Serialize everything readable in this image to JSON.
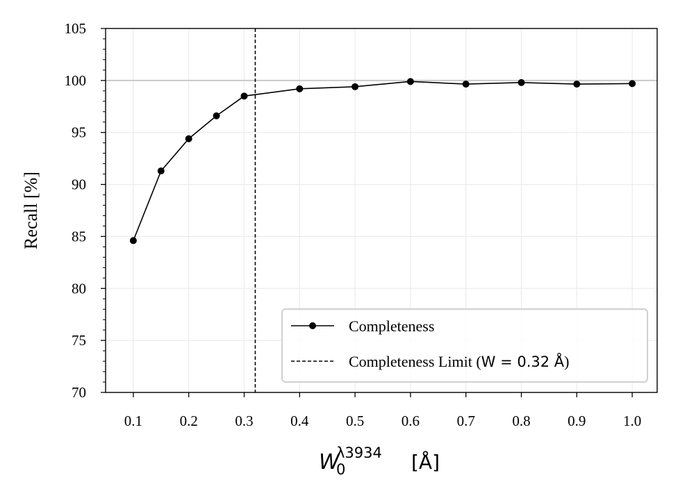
{
  "chart_data": {
    "type": "line",
    "ylabel": "Recall [%]",
    "xlabel": {
      "base": "W",
      "superscript": "λ3934",
      "subscript": "0",
      "unit": "[Å]"
    },
    "xlim": [
      0.05,
      1.045
    ],
    "ylim": [
      70,
      105
    ],
    "x_ticks": [
      0.1,
      0.2,
      0.3,
      0.4,
      0.5,
      0.6,
      0.7,
      0.8,
      0.9,
      1.0
    ],
    "x_tick_labels": [
      "0.1",
      "0.2",
      "0.3",
      "0.4",
      "0.5",
      "0.6",
      "0.7",
      "0.8",
      "0.9",
      "1.0"
    ],
    "y_ticks": [
      70,
      75,
      80,
      85,
      90,
      95,
      100,
      105
    ],
    "y_tick_labels": [
      "70",
      "75",
      "80",
      "85",
      "90",
      "95",
      "100",
      "105"
    ],
    "grid": true,
    "series": [
      {
        "name": "Completeness",
        "x": [
          0.1,
          0.15,
          0.2,
          0.25,
          0.3,
          0.4,
          0.5,
          0.6,
          0.7,
          0.8,
          0.9,
          1.0
        ],
        "y": [
          84.6,
          91.3,
          94.4,
          96.6,
          98.5,
          99.2,
          99.4,
          99.9,
          99.65,
          99.8,
          99.65,
          99.7
        ],
        "color": "#000000",
        "marker": "circle"
      }
    ],
    "reference_lines": {
      "horizontal": {
        "y": 100,
        "color": "#c8c8c8"
      },
      "vertical": {
        "x": 0.32,
        "style": "dashed",
        "color": "#000000"
      }
    },
    "legend": {
      "position": "lower-right",
      "entries": [
        {
          "label": "Completeness",
          "style": "line-marker"
        },
        {
          "label_prefix": "Completeness Limit (",
          "label_math": "W = 0.32 Å",
          "label_suffix": ")",
          "style": "dashed"
        }
      ]
    }
  }
}
